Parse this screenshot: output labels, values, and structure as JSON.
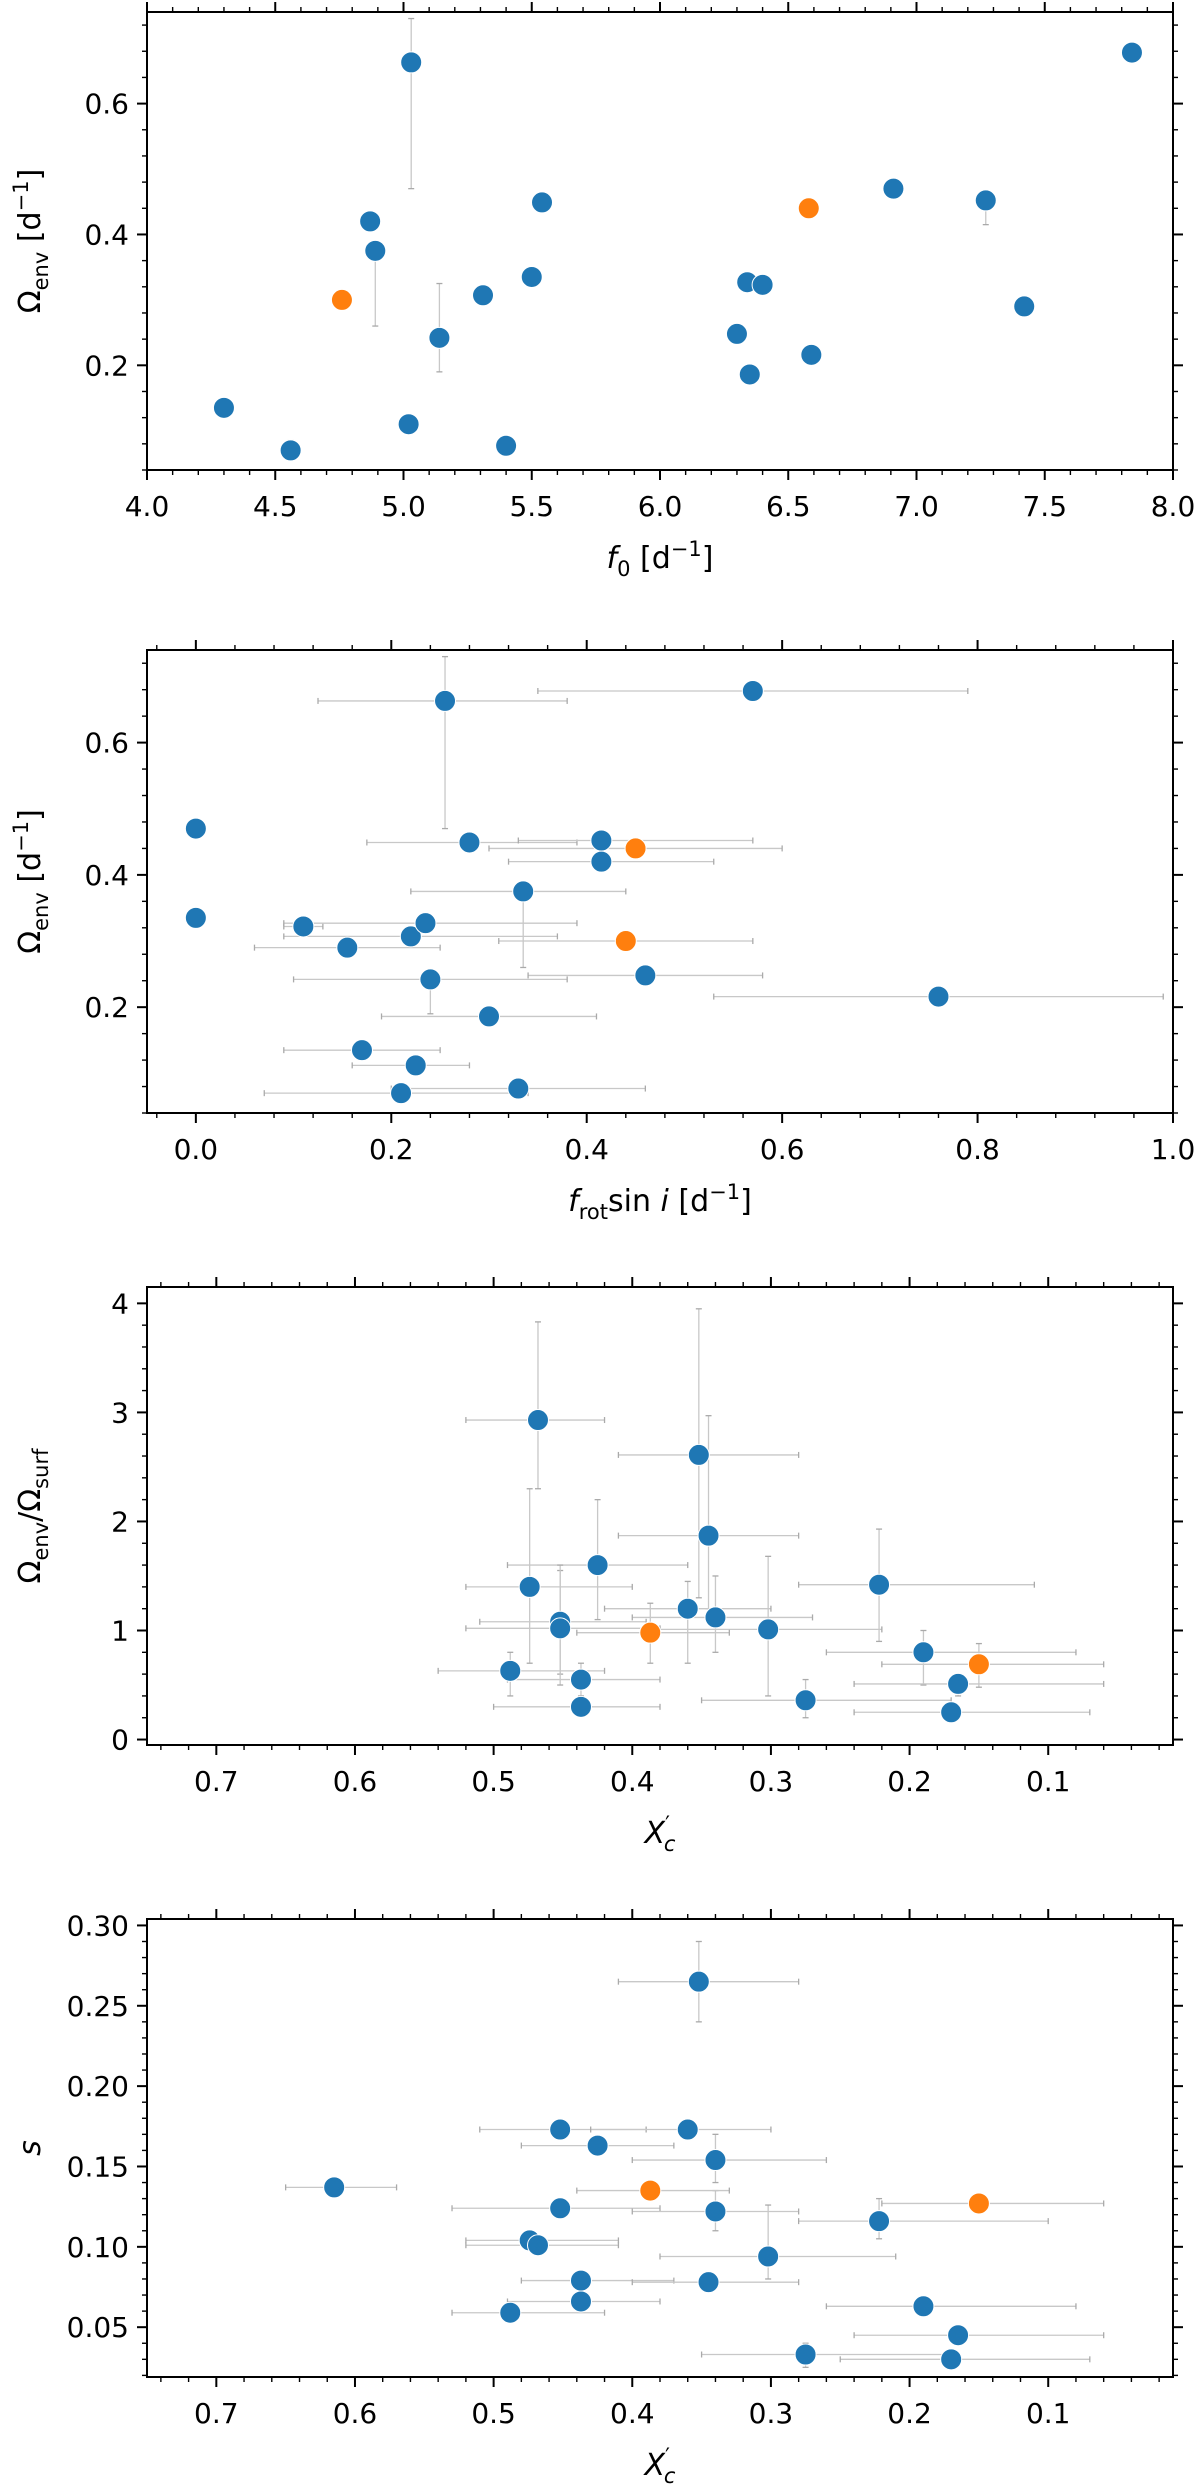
{
  "colors": {
    "blue": "#1f77b4",
    "orange": "#ff7f0e",
    "errorbar": "#c8c8c8"
  },
  "chart_data": [
    {
      "type": "scatter",
      "id": "panel1",
      "xlabel": "f0 [d−1]",
      "ylabel": "Ωenv [d−1]",
      "xlim": [
        4.0,
        8.0
      ],
      "ylim": [
        0.04,
        0.74
      ],
      "x_inverted": false,
      "xticks": [
        4.0,
        4.5,
        5.0,
        5.5,
        6.0,
        6.5,
        7.0,
        7.5,
        8.0
      ],
      "xtick_labels": [
        "4.0",
        "4.5",
        "5.0",
        "5.5",
        "6.0",
        "6.5",
        "7.0",
        "7.5",
        "8.0"
      ],
      "yticks": [
        0.2,
        0.4,
        0.6
      ],
      "ytick_labels": [
        "0.2",
        "0.4",
        "0.6"
      ],
      "series": [
        {
          "name": "blue",
          "color": "#1f77b4",
          "points": [
            {
              "x": 4.3,
              "y": 0.135
            },
            {
              "x": 4.56,
              "y": 0.07,
              "ylo": 0.06,
              "yhi": 0.085
            },
            {
              "x": 4.87,
              "y": 0.42
            },
            {
              "x": 4.89,
              "y": 0.375,
              "ylo": 0.26,
              "yhi": 0.385
            },
            {
              "x": 5.02,
              "y": 0.11
            },
            {
              "x": 5.03,
              "y": 0.663,
              "ylo": 0.47,
              "yhi": 0.73
            },
            {
              "x": 5.14,
              "y": 0.242,
              "ylo": 0.19,
              "yhi": 0.325
            },
            {
              "x": 5.31,
              "y": 0.307
            },
            {
              "x": 5.4,
              "y": 0.077
            },
            {
              "x": 5.5,
              "y": 0.335
            },
            {
              "x": 5.54,
              "y": 0.449
            },
            {
              "x": 6.3,
              "y": 0.248
            },
            {
              "x": 6.34,
              "y": 0.327
            },
            {
              "x": 6.35,
              "y": 0.186
            },
            {
              "x": 6.4,
              "y": 0.323,
              "ylo": 0.31,
              "yhi": 0.335
            },
            {
              "x": 6.59,
              "y": 0.216
            },
            {
              "x": 6.91,
              "y": 0.47
            },
            {
              "x": 7.27,
              "y": 0.452,
              "ylo": 0.415,
              "yhi": 0.46
            },
            {
              "x": 7.42,
              "y": 0.29
            },
            {
              "x": 7.84,
              "y": 0.678
            }
          ]
        },
        {
          "name": "orange",
          "color": "#ff7f0e",
          "points": [
            {
              "x": 4.76,
              "y": 0.3
            },
            {
              "x": 6.58,
              "y": 0.44
            }
          ]
        }
      ]
    },
    {
      "type": "scatter",
      "id": "panel2",
      "xlabel": "frot sin i [d−1]",
      "ylabel": "Ωenv [d−1]",
      "xlim": [
        -0.05,
        1.0
      ],
      "ylim": [
        0.04,
        0.74
      ],
      "x_inverted": false,
      "xticks": [
        0.0,
        0.2,
        0.4,
        0.6,
        0.8,
        1.0
      ],
      "xtick_labels": [
        "0.0",
        "0.2",
        "0.4",
        "0.6",
        "0.8",
        "1.0"
      ],
      "yticks": [
        0.2,
        0.4,
        0.6
      ],
      "ytick_labels": [
        "0.2",
        "0.4",
        "0.6"
      ],
      "series": [
        {
          "name": "blue",
          "color": "#1f77b4",
          "points": [
            {
              "x": 0.0,
              "y": 0.47
            },
            {
              "x": 0.0,
              "y": 0.335
            },
            {
              "x": 0.11,
              "y": 0.322,
              "xlo": 0.09,
              "xhi": 0.13
            },
            {
              "x": 0.155,
              "y": 0.29,
              "xlo": 0.06,
              "xhi": 0.25
            },
            {
              "x": 0.17,
              "y": 0.135,
              "xlo": 0.09,
              "xhi": 0.25
            },
            {
              "x": 0.21,
              "y": 0.07,
              "xlo": 0.07,
              "xhi": 0.34
            },
            {
              "x": 0.22,
              "y": 0.307,
              "xlo": 0.09,
              "xhi": 0.37
            },
            {
              "x": 0.225,
              "y": 0.112,
              "xlo": 0.16,
              "xhi": 0.28
            },
            {
              "x": 0.235,
              "y": 0.327,
              "xlo": 0.09,
              "xhi": 0.39
            },
            {
              "x": 0.24,
              "y": 0.242,
              "xlo": 0.1,
              "xhi": 0.38,
              "ylo": 0.19,
              "yhi": 0.25
            },
            {
              "x": 0.255,
              "y": 0.663,
              "xlo": 0.125,
              "xhi": 0.38,
              "ylo": 0.47,
              "yhi": 0.73
            },
            {
              "x": 0.28,
              "y": 0.449,
              "xlo": 0.175,
              "xhi": 0.39
            },
            {
              "x": 0.3,
              "y": 0.186,
              "xlo": 0.19,
              "xhi": 0.41
            },
            {
              "x": 0.33,
              "y": 0.077,
              "xlo": 0.2,
              "xhi": 0.46
            },
            {
              "x": 0.335,
              "y": 0.375,
              "xlo": 0.22,
              "xhi": 0.44,
              "ylo": 0.26,
              "yhi": 0.385
            },
            {
              "x": 0.415,
              "y": 0.42,
              "xlo": 0.32,
              "xhi": 0.53
            },
            {
              "x": 0.415,
              "y": 0.452,
              "xlo": 0.33,
              "xhi": 0.57
            },
            {
              "x": 0.46,
              "y": 0.248,
              "xlo": 0.34,
              "xhi": 0.58
            },
            {
              "x": 0.57,
              "y": 0.678,
              "xlo": 0.35,
              "xhi": 0.79
            },
            {
              "x": 0.76,
              "y": 0.216,
              "xlo": 0.53,
              "xhi": 0.99
            }
          ]
        },
        {
          "name": "orange",
          "color": "#ff7f0e",
          "points": [
            {
              "x": 0.44,
              "y": 0.3,
              "xlo": 0.31,
              "xhi": 0.57
            },
            {
              "x": 0.45,
              "y": 0.44,
              "xlo": 0.3,
              "xhi": 0.6
            }
          ]
        }
      ]
    },
    {
      "type": "scatter",
      "id": "panel3",
      "xlabel": "X′c",
      "ylabel": "Ωenv/Ωsurf",
      "xlim": [
        0.75,
        0.01
      ],
      "ylim": [
        -0.05,
        4.15
      ],
      "x_inverted": true,
      "xticks": [
        0.7,
        0.6,
        0.5,
        0.4,
        0.3,
        0.2,
        0.1
      ],
      "xtick_labels": [
        "0.7",
        "0.6",
        "0.5",
        "0.4",
        "0.3",
        "0.2",
        "0.1"
      ],
      "yticks": [
        0,
        1,
        2,
        3,
        4
      ],
      "ytick_labels": [
        "0",
        "1",
        "2",
        "3",
        "4"
      ],
      "series": [
        {
          "name": "blue",
          "color": "#1f77b4",
          "points": [
            {
              "x": 0.468,
              "y": 2.93,
              "xlo": 0.42,
              "xhi": 0.52,
              "ylo": 2.3,
              "yhi": 3.83
            },
            {
              "x": 0.352,
              "y": 2.61,
              "xlo": 0.28,
              "xhi": 0.41,
              "ylo": 1.3,
              "yhi": 3.95
            },
            {
              "x": 0.345,
              "y": 1.87,
              "xlo": 0.28,
              "xhi": 0.41,
              "ylo": 1.2,
              "yhi": 2.97
            },
            {
              "x": 0.425,
              "y": 1.6,
              "xlo": 0.36,
              "xhi": 0.49,
              "ylo": 1.1,
              "yhi": 2.2
            },
            {
              "x": 0.474,
              "y": 1.4,
              "xlo": 0.4,
              "xhi": 0.52,
              "ylo": 0.7,
              "yhi": 2.3
            },
            {
              "x": 0.222,
              "y": 1.42,
              "xlo": 0.11,
              "xhi": 0.28,
              "ylo": 0.9,
              "yhi": 1.93
            },
            {
              "x": 0.36,
              "y": 1.2,
              "xlo": 0.3,
              "xhi": 0.42,
              "ylo": 0.7,
              "yhi": 1.45
            },
            {
              "x": 0.452,
              "y": 1.08,
              "xlo": 0.39,
              "xhi": 0.51,
              "ylo": 0.6,
              "yhi": 1.55
            },
            {
              "x": 0.452,
              "y": 1.02,
              "xlo": 0.38,
              "xhi": 0.52,
              "ylo": 0.5,
              "yhi": 1.6
            },
            {
              "x": 0.34,
              "y": 1.12,
              "xlo": 0.27,
              "xhi": 0.4,
              "ylo": 0.8,
              "yhi": 1.5
            },
            {
              "x": 0.302,
              "y": 1.01,
              "xlo": 0.22,
              "xhi": 0.38,
              "ylo": 0.4,
              "yhi": 1.68
            },
            {
              "x": 0.19,
              "y": 0.8,
              "xlo": 0.08,
              "xhi": 0.26,
              "ylo": 0.5,
              "yhi": 1.0
            },
            {
              "x": 0.488,
              "y": 0.63,
              "xlo": 0.42,
              "xhi": 0.54,
              "ylo": 0.4,
              "yhi": 0.8
            },
            {
              "x": 0.437,
              "y": 0.55,
              "xlo": 0.38,
              "xhi": 0.49,
              "ylo": 0.4,
              "yhi": 0.7
            },
            {
              "x": 0.165,
              "y": 0.51,
              "xlo": 0.06,
              "xhi": 0.24,
              "ylo": 0.4,
              "yhi": 0.6
            },
            {
              "x": 0.275,
              "y": 0.36,
              "xlo": 0.17,
              "xhi": 0.35,
              "ylo": 0.2,
              "yhi": 0.55
            },
            {
              "x": 0.437,
              "y": 0.3,
              "xlo": 0.38,
              "xhi": 0.5
            },
            {
              "x": 0.17,
              "y": 0.25,
              "xlo": 0.07,
              "xhi": 0.24,
              "ylo": 0.18,
              "yhi": 0.33
            }
          ]
        },
        {
          "name": "orange",
          "color": "#ff7f0e",
          "points": [
            {
              "x": 0.387,
              "y": 0.98,
              "xlo": 0.33,
              "xhi": 0.44,
              "ylo": 0.7,
              "yhi": 1.25
            },
            {
              "x": 0.15,
              "y": 0.69,
              "xlo": 0.06,
              "xhi": 0.22,
              "ylo": 0.48,
              "yhi": 0.88
            }
          ]
        }
      ]
    },
    {
      "type": "scatter",
      "id": "panel4",
      "xlabel": "X′c",
      "ylabel": "s",
      "xlim": [
        0.75,
        0.01
      ],
      "ylim": [
        0.019,
        0.304
      ],
      "x_inverted": true,
      "xticks": [
        0.7,
        0.6,
        0.5,
        0.4,
        0.3,
        0.2,
        0.1
      ],
      "xtick_labels": [
        "0.7",
        "0.6",
        "0.5",
        "0.4",
        "0.3",
        "0.2",
        "0.1"
      ],
      "yticks": [
        0.05,
        0.1,
        0.15,
        0.2,
        0.25,
        0.3
      ],
      "ytick_labels": [
        "0.05",
        "0.10",
        "0.15",
        "0.20",
        "0.25",
        "0.30"
      ],
      "series": [
        {
          "name": "blue",
          "color": "#1f77b4",
          "points": [
            {
              "x": 0.352,
              "y": 0.265,
              "xlo": 0.28,
              "xhi": 0.41,
              "ylo": 0.24,
              "yhi": 0.29
            },
            {
              "x": 0.452,
              "y": 0.173,
              "xlo": 0.39,
              "xhi": 0.51
            },
            {
              "x": 0.36,
              "y": 0.173,
              "xlo": 0.3,
              "xhi": 0.43
            },
            {
              "x": 0.425,
              "y": 0.163,
              "xlo": 0.37,
              "xhi": 0.48
            },
            {
              "x": 0.34,
              "y": 0.154,
              "xlo": 0.26,
              "xhi": 0.4,
              "ylo": 0.14,
              "yhi": 0.17
            },
            {
              "x": 0.615,
              "y": 0.137,
              "xlo": 0.57,
              "xhi": 0.65
            },
            {
              "x": 0.452,
              "y": 0.124,
              "xlo": 0.38,
              "xhi": 0.53
            },
            {
              "x": 0.34,
              "y": 0.122,
              "xlo": 0.28,
              "xhi": 0.4,
              "ylo": 0.11,
              "yhi": 0.135
            },
            {
              "x": 0.222,
              "y": 0.116,
              "xlo": 0.1,
              "xhi": 0.28,
              "ylo": 0.105,
              "yhi": 0.13
            },
            {
              "x": 0.474,
              "y": 0.104,
              "xlo": 0.41,
              "xhi": 0.52
            },
            {
              "x": 0.468,
              "y": 0.101,
              "xlo": 0.41,
              "xhi": 0.52
            },
            {
              "x": 0.302,
              "y": 0.094,
              "xlo": 0.21,
              "xhi": 0.38,
              "ylo": 0.08,
              "yhi": 0.126
            },
            {
              "x": 0.437,
              "y": 0.079,
              "xlo": 0.37,
              "xhi": 0.48
            },
            {
              "x": 0.345,
              "y": 0.078,
              "xlo": 0.28,
              "xhi": 0.4
            },
            {
              "x": 0.437,
              "y": 0.066,
              "xlo": 0.38,
              "xhi": 0.49
            },
            {
              "x": 0.19,
              "y": 0.063,
              "xlo": 0.08,
              "xhi": 0.26
            },
            {
              "x": 0.488,
              "y": 0.059,
              "xlo": 0.42,
              "xhi": 0.53
            },
            {
              "x": 0.165,
              "y": 0.045,
              "xlo": 0.06,
              "xhi": 0.24
            },
            {
              "x": 0.275,
              "y": 0.033,
              "xlo": 0.17,
              "xhi": 0.35,
              "ylo": 0.025,
              "yhi": 0.04
            },
            {
              "x": 0.17,
              "y": 0.03,
              "xlo": 0.07,
              "xhi": 0.25
            }
          ]
        },
        {
          "name": "orange",
          "color": "#ff7f0e",
          "points": [
            {
              "x": 0.387,
              "y": 0.135,
              "xlo": 0.33,
              "xhi": 0.44
            },
            {
              "x": 0.15,
              "y": 0.127,
              "xlo": 0.06,
              "xhi": 0.22
            }
          ]
        }
      ]
    }
  ]
}
